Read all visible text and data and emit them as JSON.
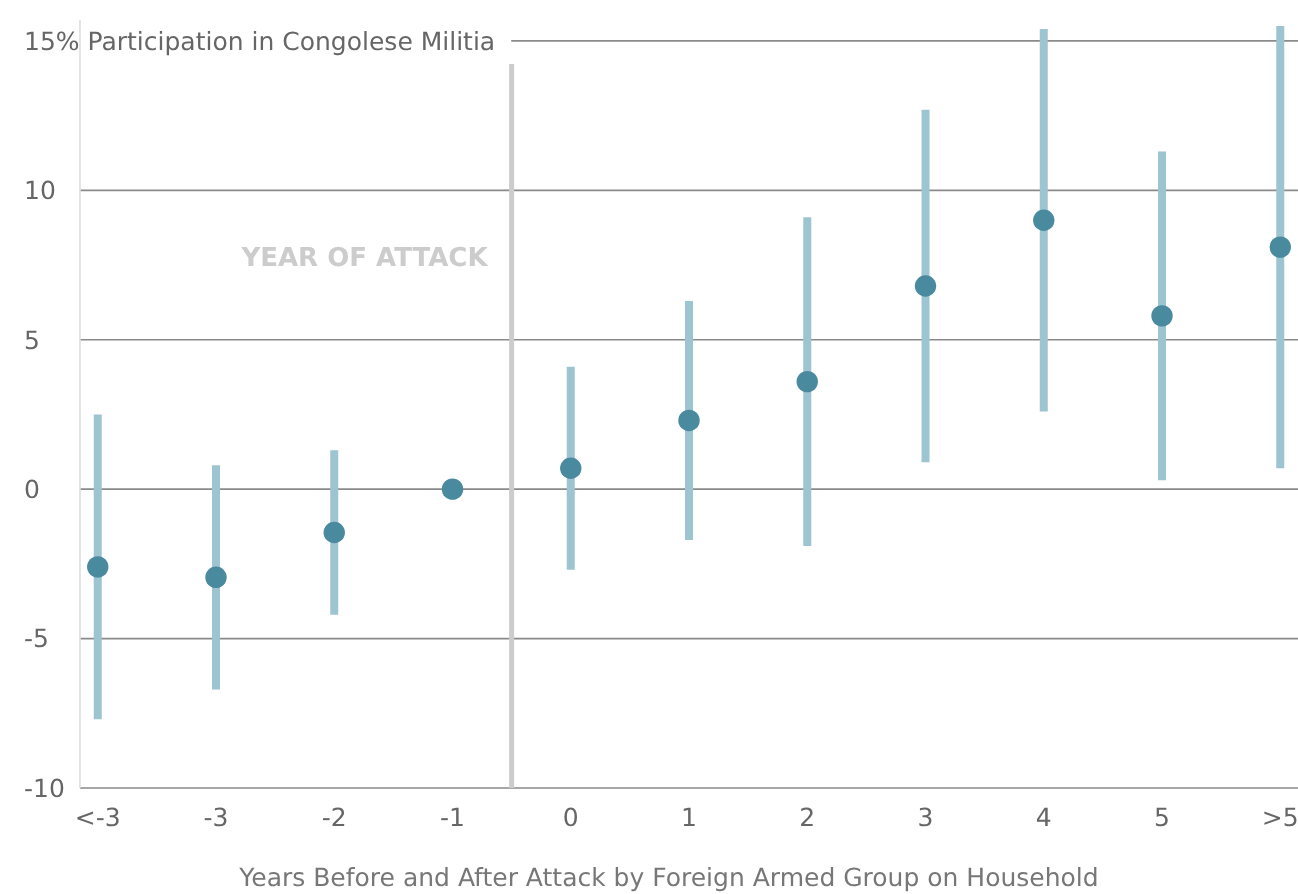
{
  "chart_data": {
    "type": "scatter",
    "xlabel": "Years Before and After Attack by Foreign Armed Group on Household",
    "x": [
      -4,
      -3,
      -2,
      -1,
      0,
      1,
      2,
      3,
      4,
      5,
      6
    ],
    "series": [
      {
        "color": "#4a8a9e",
        "values": [
          -2.6,
          -2.95,
          -1.45,
          0,
          0.7,
          2.3,
          3.6,
          6.8,
          9.0,
          5.8,
          8.1
        ],
        "errors": [
          [
            -7.7,
            2.5
          ],
          [
            -6.7,
            0.8
          ],
          [
            -4.2,
            1.3
          ],
          null,
          [
            -2.7,
            4.1
          ],
          [
            -1.7,
            6.3
          ],
          [
            -1.9,
            9.1
          ],
          [
            0.9,
            12.7
          ],
          [
            2.6,
            15.4
          ],
          [
            0.3,
            11.3
          ],
          [
            0.7,
            15.5
          ]
        ]
      }
    ],
    "marker": "circle",
    "xlim": [
      -4.15,
      6.15
    ],
    "xticks": [
      {
        "value": -4,
        "label": "<-3"
      },
      -3,
      -2,
      -1,
      0,
      1,
      2,
      3,
      4,
      5,
      {
        "value": 6,
        "label": ">5"
      }
    ],
    "ylim": [
      -10,
      15.7
    ],
    "yticks": [
      -10,
      -5,
      0,
      5,
      10,
      {
        "value": 15,
        "label": "15% Participation in Congolese Militia"
      }
    ],
    "grid": "y",
    "ref_lines": [
      {
        "axis": "x",
        "value": -0.5,
        "label": "YEAR OF ATTACK",
        "color": "#cccccc"
      }
    ]
  }
}
